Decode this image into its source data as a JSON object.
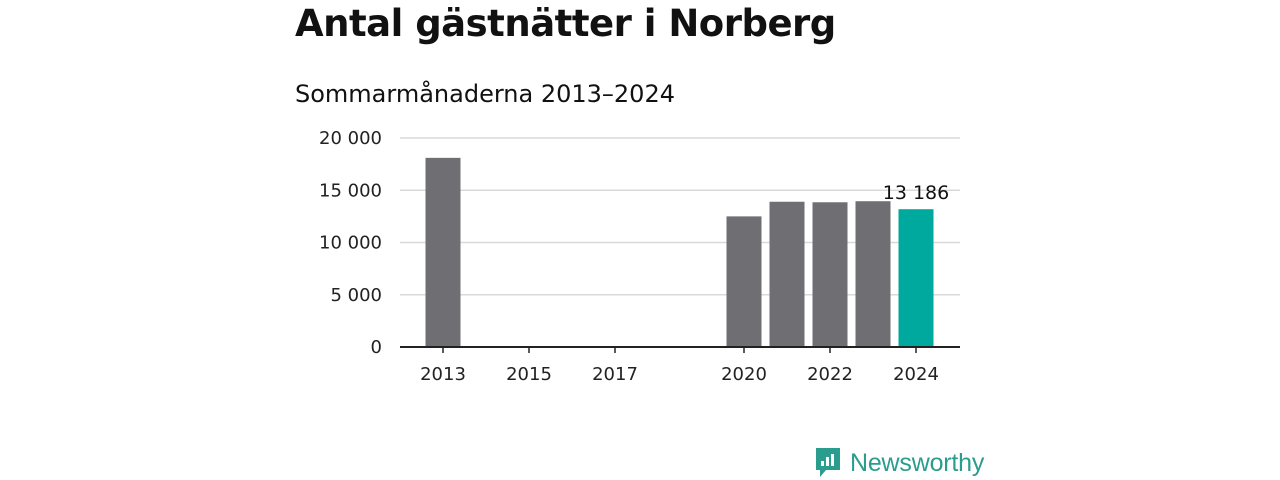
{
  "header": {
    "title": "Antal gästnätter i Norberg",
    "subtitle": "Sommarmånaderna 2013–2024"
  },
  "brand": {
    "name": "Newsworthy",
    "icon": "newsworthy-logo-icon"
  },
  "colors": {
    "bar": "#6f6e73",
    "highlight": "#00a99d",
    "brand": "#2a9d8f",
    "grid": "#d9d9d9",
    "axis": "#222222"
  },
  "chart_data": {
    "type": "bar",
    "x": [
      2013,
      2014,
      2015,
      2016,
      2017,
      2018,
      2019,
      2020,
      2021,
      2022,
      2023,
      2024
    ],
    "values": [
      18100,
      null,
      null,
      null,
      null,
      null,
      null,
      12500,
      13900,
      13850,
      13950,
      13186
    ],
    "highlight_index": 11,
    "data_labels": [
      {
        "index": 11,
        "text": "13 186"
      }
    ],
    "xticks": [
      "2013",
      "2015",
      "2017",
      "2020",
      "2022",
      "2024"
    ],
    "yticks": [
      "0",
      "5 000",
      "10 000",
      "15 000",
      "20 000"
    ],
    "ylim": [
      0,
      20000
    ],
    "grid": true,
    "legend": "none"
  }
}
